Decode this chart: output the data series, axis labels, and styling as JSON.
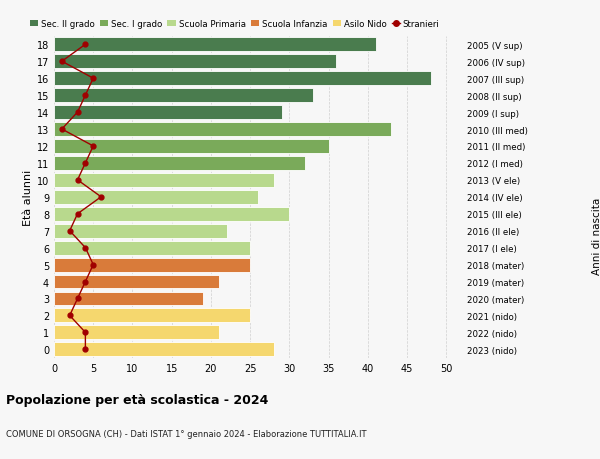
{
  "ages": [
    18,
    17,
    16,
    15,
    14,
    13,
    12,
    11,
    10,
    9,
    8,
    7,
    6,
    5,
    4,
    3,
    2,
    1,
    0
  ],
  "right_labels": [
    "2005 (V sup)",
    "2006 (IV sup)",
    "2007 (III sup)",
    "2008 (II sup)",
    "2009 (I sup)",
    "2010 (III med)",
    "2011 (II med)",
    "2012 (I med)",
    "2013 (V ele)",
    "2014 (IV ele)",
    "2015 (III ele)",
    "2016 (II ele)",
    "2017 (I ele)",
    "2018 (mater)",
    "2019 (mater)",
    "2020 (mater)",
    "2021 (nido)",
    "2022 (nido)",
    "2023 (nido)"
  ],
  "bar_values": [
    41,
    36,
    48,
    33,
    29,
    43,
    35,
    32,
    28,
    26,
    30,
    22,
    25,
    25,
    21,
    19,
    25,
    21,
    28
  ],
  "bar_colors": [
    "#4a7c4e",
    "#4a7c4e",
    "#4a7c4e",
    "#4a7c4e",
    "#4a7c4e",
    "#7aaa5a",
    "#7aaa5a",
    "#7aaa5a",
    "#b8d98d",
    "#b8d98d",
    "#b8d98d",
    "#b8d98d",
    "#b8d98d",
    "#d97b3a",
    "#d97b3a",
    "#d97b3a",
    "#f5d76e",
    "#f5d76e",
    "#f5d76e"
  ],
  "stranieri_values": [
    4,
    1,
    5,
    4,
    3,
    1,
    5,
    4,
    3,
    6,
    3,
    2,
    4,
    5,
    4,
    3,
    2,
    4,
    4
  ],
  "stranieri_color": "#a00000",
  "legend_items": [
    {
      "label": "Sec. II grado",
      "color": "#4a7c4e"
    },
    {
      "label": "Sec. I grado",
      "color": "#7aaa5a"
    },
    {
      "label": "Scuola Primaria",
      "color": "#b8d98d"
    },
    {
      "label": "Scuola Infanzia",
      "color": "#d97b3a"
    },
    {
      "label": "Asilo Nido",
      "color": "#f5d76e"
    },
    {
      "label": "Stranieri",
      "color": "#a00000"
    }
  ],
  "ylabel": "Età alunni",
  "right_ylabel": "Anni di nascita",
  "xlim": [
    0,
    52
  ],
  "xticks": [
    0,
    5,
    10,
    15,
    20,
    25,
    30,
    35,
    40,
    45,
    50
  ],
  "title": "Popolazione per età scolastica - 2024",
  "subtitle": "COMUNE DI ORSOGNA (CH) - Dati ISTAT 1° gennaio 2024 - Elaborazione TUTTITALIA.IT",
  "background_color": "#f7f7f7",
  "grid_color": "#d0d0d0"
}
